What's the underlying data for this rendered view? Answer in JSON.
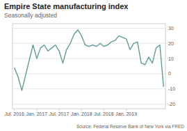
{
  "chart_data": {
    "type": "line",
    "title": "Empire State manufacturing index",
    "subtitle": "Seasonally adjusted",
    "source": "Source: Federal Reserve Bank of New York via FRED",
    "categories": [
      "Jul. 2016",
      null,
      null,
      null,
      null,
      null,
      "Jan. 2017",
      null,
      null,
      null,
      null,
      null,
      "Jul. 2017",
      null,
      null,
      null,
      null,
      null,
      "Jan. 2018",
      null,
      null,
      null,
      null,
      null,
      "Jul. 2018",
      null,
      null,
      null,
      null,
      null,
      "Jan. 2019",
      null,
      null,
      null,
      null,
      null,
      null,
      null,
      null,
      null,
      null
    ],
    "values": [
      4.0,
      -2.0,
      -11.0,
      -1.0,
      9.0,
      19.0,
      10.0,
      17.0,
      19.0,
      15.0,
      17.0,
      19.0,
      15.0,
      7.0,
      16.0,
      20.0,
      26.0,
      29.0,
      25.0,
      19.0,
      18.0,
      19.0,
      18.0,
      20.0,
      18.0,
      19.0,
      21.0,
      22.0,
      25.0,
      24.0,
      23.0,
      16.0,
      20.0,
      21.0,
      7.0,
      6.0,
      11.0,
      7.0,
      17.0,
      19.0,
      -8.6
    ],
    "color": "#5a9e96",
    "ylim": [
      -23,
      33
    ],
    "yticks": [
      -20,
      -10,
      0,
      10,
      20,
      30
    ],
    "grid": true
  }
}
